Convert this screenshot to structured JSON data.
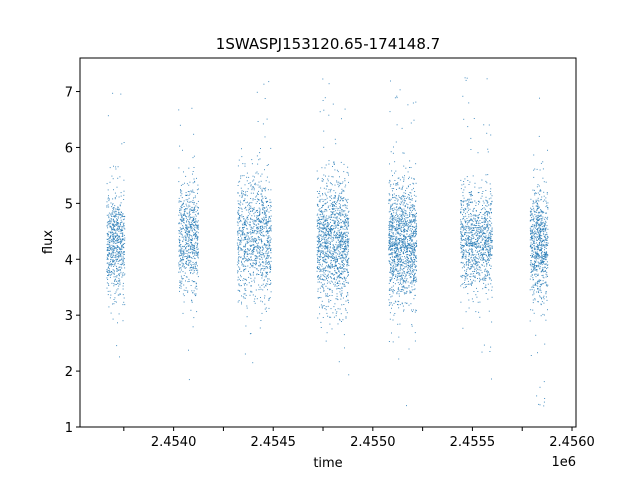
{
  "chart_data": {
    "type": "scatter",
    "title": "1SWASPJ153120.65-174148.7",
    "xlabel": "time",
    "ylabel": "flux",
    "x_offset_label": "1e6",
    "xlim": [
      2453730,
      2456220
    ],
    "ylim": [
      1.0,
      7.6
    ],
    "x_ticks": [
      2453950,
      2454200,
      2454450,
      2454700,
      2454950,
      2455200,
      2455450,
      2455700,
      2455950,
      2456200
    ],
    "x_tick_labels": [
      "",
      "2.4540",
      "",
      "2.4545",
      "",
      "2.4550",
      "",
      "2.4555",
      "",
      "2.4560"
    ],
    "y_ticks": [
      1,
      2,
      3,
      4,
      5,
      6,
      7
    ],
    "y_tick_labels": [
      "1",
      "2",
      "3",
      "4",
      "5",
      "6",
      "7"
    ],
    "grid": false,
    "point_color": "#1f77b4",
    "seasons": [
      {
        "x_start": 2453865,
        "x_end": 2453955,
        "y_center": 4.3,
        "y_spread": 0.45,
        "y_min": 1.8,
        "y_max": 7.3,
        "n": 650
      },
      {
        "x_start": 2454225,
        "x_end": 2454325,
        "y_center": 4.4,
        "y_spread": 0.5,
        "y_min": 1.3,
        "y_max": 7.25,
        "n": 650
      },
      {
        "x_start": 2454520,
        "x_end": 2454690,
        "y_center": 4.4,
        "y_spread": 0.55,
        "y_min": 1.8,
        "y_max": 7.4,
        "n": 1000
      },
      {
        "x_start": 2454920,
        "x_end": 2455080,
        "y_center": 4.3,
        "y_spread": 0.55,
        "y_min": 1.3,
        "y_max": 7.35,
        "n": 1300
      },
      {
        "x_start": 2455280,
        "x_end": 2455420,
        "y_center": 4.3,
        "y_spread": 0.55,
        "y_min": 1.3,
        "y_max": 7.3,
        "n": 1300
      },
      {
        "x_start": 2455640,
        "x_end": 2455800,
        "y_center": 4.35,
        "y_spread": 0.45,
        "y_min": 1.6,
        "y_max": 7.35,
        "n": 1000
      },
      {
        "x_start": 2455990,
        "x_end": 2456080,
        "y_center": 4.3,
        "y_spread": 0.5,
        "y_min": 1.35,
        "y_max": 7.35,
        "n": 750
      }
    ]
  }
}
